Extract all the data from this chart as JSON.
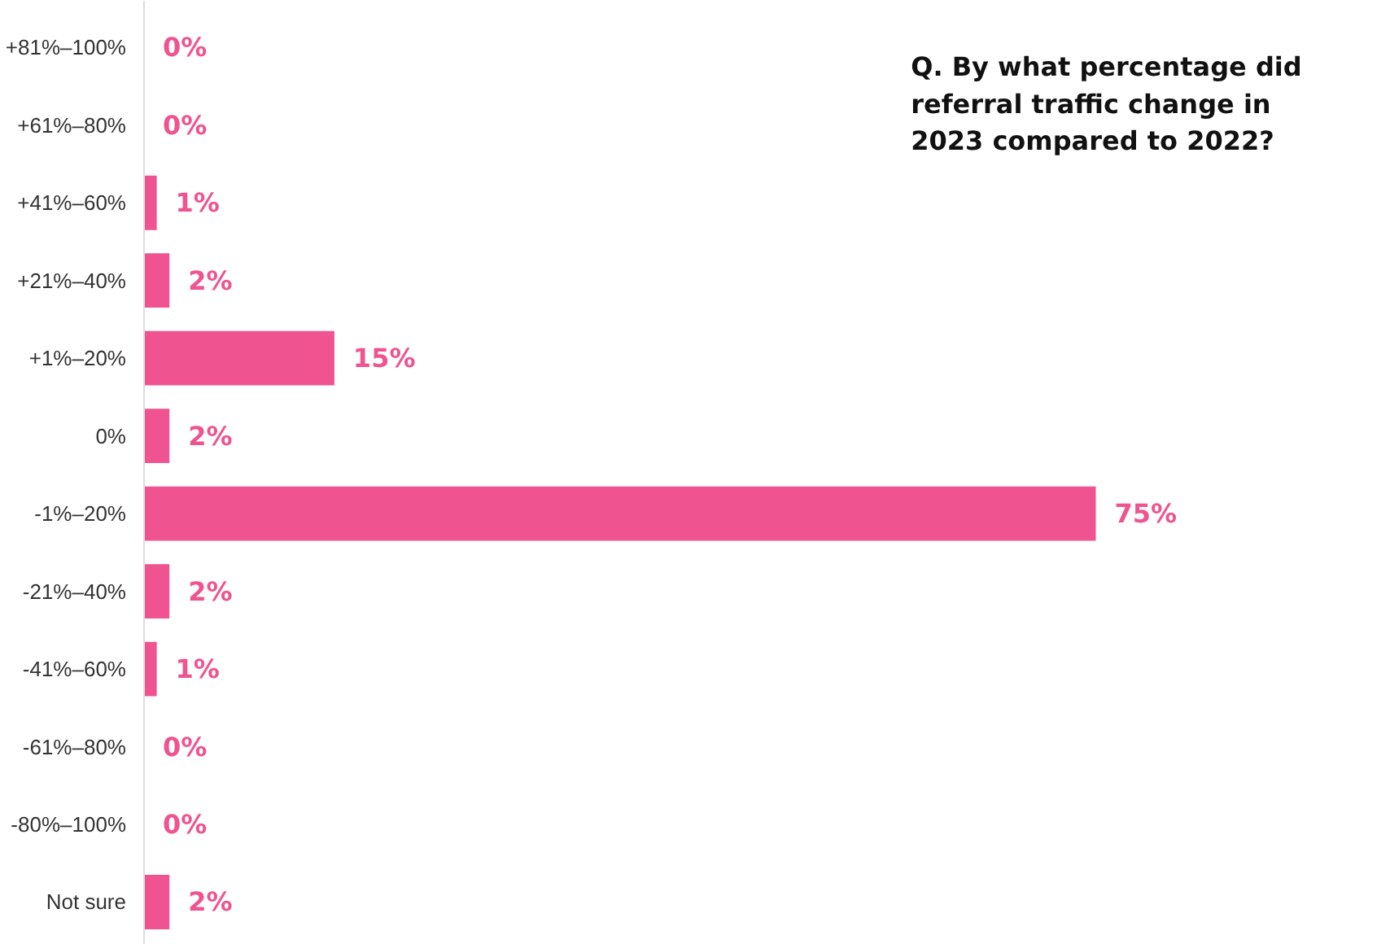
{
  "chart_data": {
    "type": "bar",
    "orientation": "horizontal",
    "title": "Q. By what percentage did referral traffic change in 2023 compared to 2022?",
    "categories": [
      "+81%–100%",
      "+61%–80%",
      "+41%–60%",
      "+21%–40%",
      "+1%–20%",
      "0%",
      "-1%–20%",
      "-21%–40%",
      "-41%–60%",
      "-61%–80%",
      "-80%–100%",
      "Not sure"
    ],
    "values": [
      0,
      0,
      1,
      2,
      15,
      2,
      75,
      2,
      1,
      0,
      0,
      2
    ],
    "value_labels": [
      "0%",
      "0%",
      "1%",
      "2%",
      "15%",
      "2%",
      "75%",
      "2%",
      "1%",
      "0%",
      "0%",
      "2%"
    ],
    "color": "#ef5390",
    "grid": false
  }
}
